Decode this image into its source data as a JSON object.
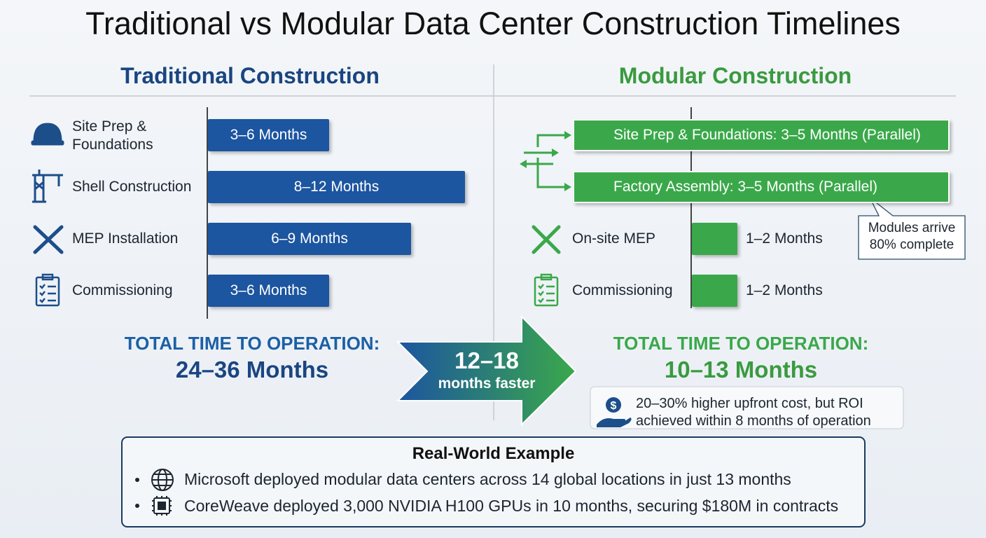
{
  "title": "Traditional vs Modular Data Center Construction Timelines",
  "traditional": {
    "heading": "Traditional Construction",
    "steps": [
      {
        "label": "Site Prep & Foundations",
        "duration": "3–6 Months"
      },
      {
        "label": "Shell Construction",
        "duration": "8–12 Months"
      },
      {
        "label": "MEP Installation",
        "duration": "6–9 Months"
      },
      {
        "label": "Commissioning",
        "duration": "3–6 Months"
      }
    ],
    "total_label": "TOTAL TIME TO OPERATION:",
    "total": "24–36 Months"
  },
  "modular": {
    "heading": "Modular Construction",
    "parallel_steps": [
      "Site Prep & Foundations: 3–5 Months (Parallel)",
      "Factory Assembly: 3–5 Months (Parallel)"
    ],
    "callout": "Modules arrive 80% complete",
    "steps": [
      {
        "label": "On-site MEP",
        "duration": "1–2 Months"
      },
      {
        "label": "Commissioning",
        "duration": "1–2 Months"
      }
    ],
    "total_label": "TOTAL TIME TO OPERATION:",
    "total": "10–13 Months",
    "note": "20–30% higher upfront cost, but ROI achieved within 8 months of operation"
  },
  "comparison": {
    "value": "12–18",
    "label": "months faster"
  },
  "example": {
    "title": "Real-World Example",
    "items": [
      "Microsoft deployed modular data centers across 14 global locations in just 13 months",
      "CoreWeave deployed 3,000 NVIDIA H100 GPUs in 10 months, securing $180M in contracts"
    ]
  }
}
